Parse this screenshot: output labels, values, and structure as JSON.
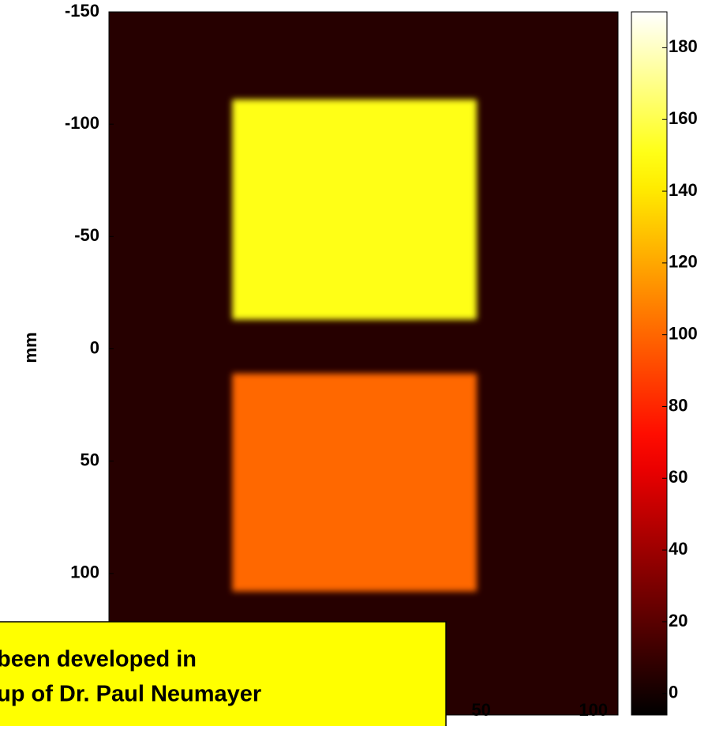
{
  "chart_data": {
    "type": "heatmap",
    "ylabel": "mm",
    "xlim": [
      -116,
      111
    ],
    "ylim": [
      -150,
      163
    ],
    "xticks": [
      50,
      100
    ],
    "yticks": [
      -150,
      -100,
      -50,
      0,
      50,
      100
    ],
    "background": 5,
    "regions": [
      {
        "x": [
          -61,
          48
        ],
        "y": [
          -111,
          -13
        ],
        "value": 150
      },
      {
        "x": [
          -61,
          48
        ],
        "y": [
          11,
          108
        ],
        "value": 100
      }
    ],
    "colormap": "hot",
    "clim": [
      -6,
      190
    ],
    "cticks": [
      0,
      20,
      40,
      60,
      80,
      100,
      120,
      140,
      160,
      180
    ],
    "annotation": [
      "been developed in",
      "up of Dr. Paul Neumayer"
    ]
  }
}
